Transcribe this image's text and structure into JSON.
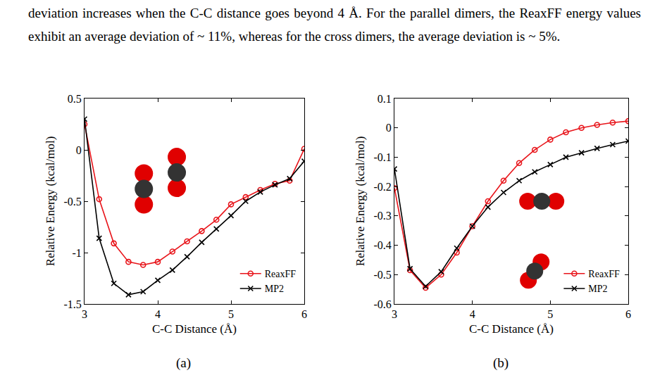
{
  "paragraph": "deviation increases when the C-C distance goes beyond 4 Å. For the parallel dimers, the ReaxFF energy values exhibit an average deviation of ~ 11%, whereas for the cross dimers, the average deviation is ~ 5%.",
  "chart_data": [
    {
      "type": "line",
      "panel": "(a)",
      "x_label": "C-C Distance (Å)",
      "y_label": "Relative Energy (kcal/mol)",
      "x": [
        3.0,
        3.2,
        3.4,
        3.6,
        3.8,
        4.0,
        4.2,
        4.4,
        4.6,
        4.8,
        5.0,
        5.2,
        5.4,
        5.6,
        5.8,
        6.0
      ],
      "series": [
        {
          "name": "ReaxFF",
          "color": "#e8141a",
          "marker": "open circle",
          "values": [
            0.25,
            -0.48,
            -0.91,
            -1.09,
            -1.12,
            -1.09,
            -0.99,
            -0.89,
            -0.79,
            -0.68,
            -0.53,
            -0.46,
            -0.39,
            -0.33,
            -0.3,
            0.01
          ]
        },
        {
          "name": "MP2",
          "color": "#000000",
          "marker": "x",
          "values": [
            0.3,
            -0.86,
            -1.3,
            -1.41,
            -1.38,
            -1.27,
            -1.17,
            -1.04,
            -0.9,
            -0.77,
            -0.64,
            -0.5,
            -0.41,
            -0.34,
            -0.28,
            -0.11
          ]
        }
      ],
      "xlim": [
        3,
        6
      ],
      "xticks": [
        3,
        4,
        5,
        6
      ],
      "ylim": [
        -1.5,
        0.5
      ],
      "yticks": [
        -1.5,
        -1,
        -0.5,
        0,
        0.5
      ],
      "legend": "bottom right"
    },
    {
      "type": "line",
      "panel": "(b)",
      "x_label": "C-C Distance (Å)",
      "y_label": "Relative Energy (kcal/mol)",
      "x": [
        3.0,
        3.2,
        3.4,
        3.6,
        3.8,
        4.0,
        4.2,
        4.4,
        4.6,
        4.8,
        5.0,
        5.2,
        5.4,
        5.6,
        5.8,
        6.0
      ],
      "series": [
        {
          "name": "ReaxFF",
          "color": "#e8141a",
          "marker": "open circle",
          "values": [
            -0.205,
            -0.485,
            -0.545,
            -0.5,
            -0.425,
            -0.335,
            -0.25,
            -0.18,
            -0.12,
            -0.075,
            -0.04,
            -0.015,
            0.0,
            0.01,
            0.018,
            0.023
          ]
        },
        {
          "name": "MP2",
          "color": "#000000",
          "marker": "x",
          "values": [
            -0.14,
            -0.48,
            -0.54,
            -0.49,
            -0.41,
            -0.335,
            -0.27,
            -0.22,
            -0.18,
            -0.15,
            -0.125,
            -0.1,
            -0.085,
            -0.07,
            -0.057,
            -0.045
          ]
        }
      ],
      "xlim": [
        3,
        6
      ],
      "xticks": [
        3,
        4,
        5,
        6
      ],
      "ylim": [
        -0.6,
        0.1
      ],
      "yticks": [
        -0.6,
        -0.5,
        -0.4,
        -0.3,
        -0.2,
        -0.1,
        0,
        0.1
      ],
      "legend": "bottom right"
    }
  ]
}
